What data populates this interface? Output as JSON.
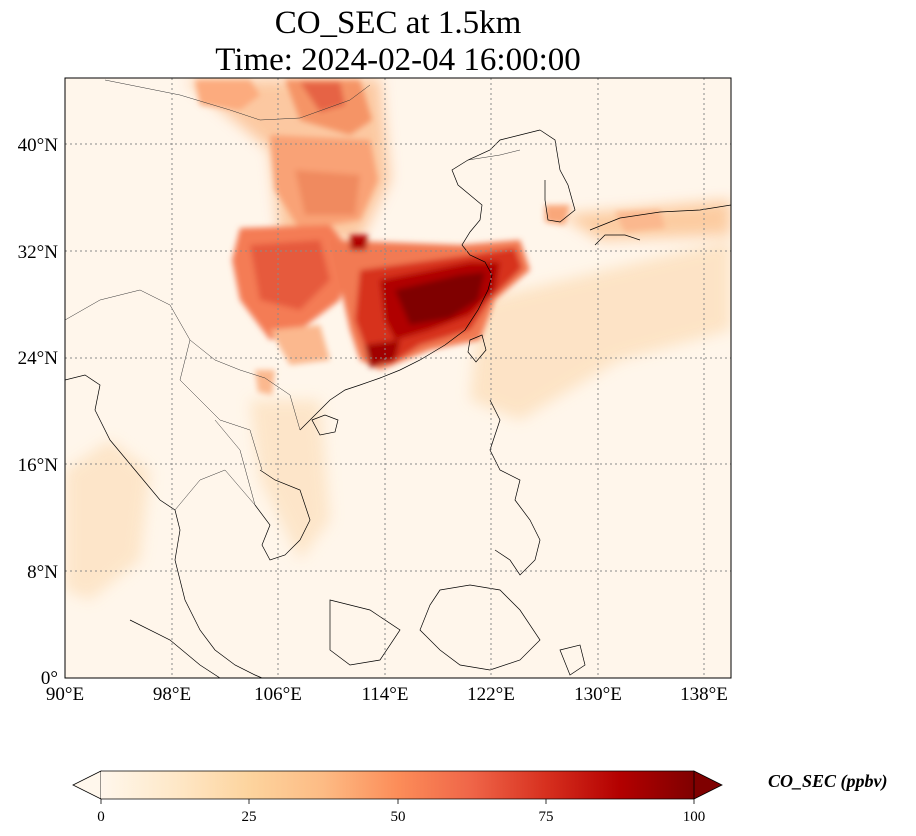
{
  "title_line1": "CO_SEC at 1.5km",
  "title_line2": "Time: 2024-02-04 16:00:00",
  "map": {
    "projection": "PlateCarree",
    "lon_range": [
      90,
      140
    ],
    "lat_range": [
      0,
      45
    ],
    "lon_ticks": [
      90,
      98,
      106,
      114,
      122,
      130,
      138
    ],
    "lon_tick_labels": [
      "90°E",
      "98°E",
      "106°E",
      "114°E",
      "122°E",
      "130°E",
      "138°E"
    ],
    "lat_ticks": [
      0,
      8,
      16,
      24,
      32,
      40
    ],
    "lat_tick_labels": [
      "0°",
      "8°N",
      "16°N",
      "24°N",
      "32°N",
      "40°N"
    ],
    "gridlines": "dotted gray",
    "coastlines": true,
    "borders": true
  },
  "colorbar": {
    "label": "CO_SEC (ppbv)",
    "colormap": "OrRd",
    "min": 0,
    "max": 100,
    "extend": "both",
    "tick_values": [
      0,
      25,
      50,
      75,
      100
    ],
    "tick_labels": [
      "0",
      "25",
      "50",
      "75",
      "100"
    ],
    "colors": [
      "#fff7ec",
      "#fee8c8",
      "#fdd49e",
      "#fdbb84",
      "#fc8d59",
      "#ef6548",
      "#d7301f",
      "#b30000",
      "#7f0000"
    ]
  }
}
